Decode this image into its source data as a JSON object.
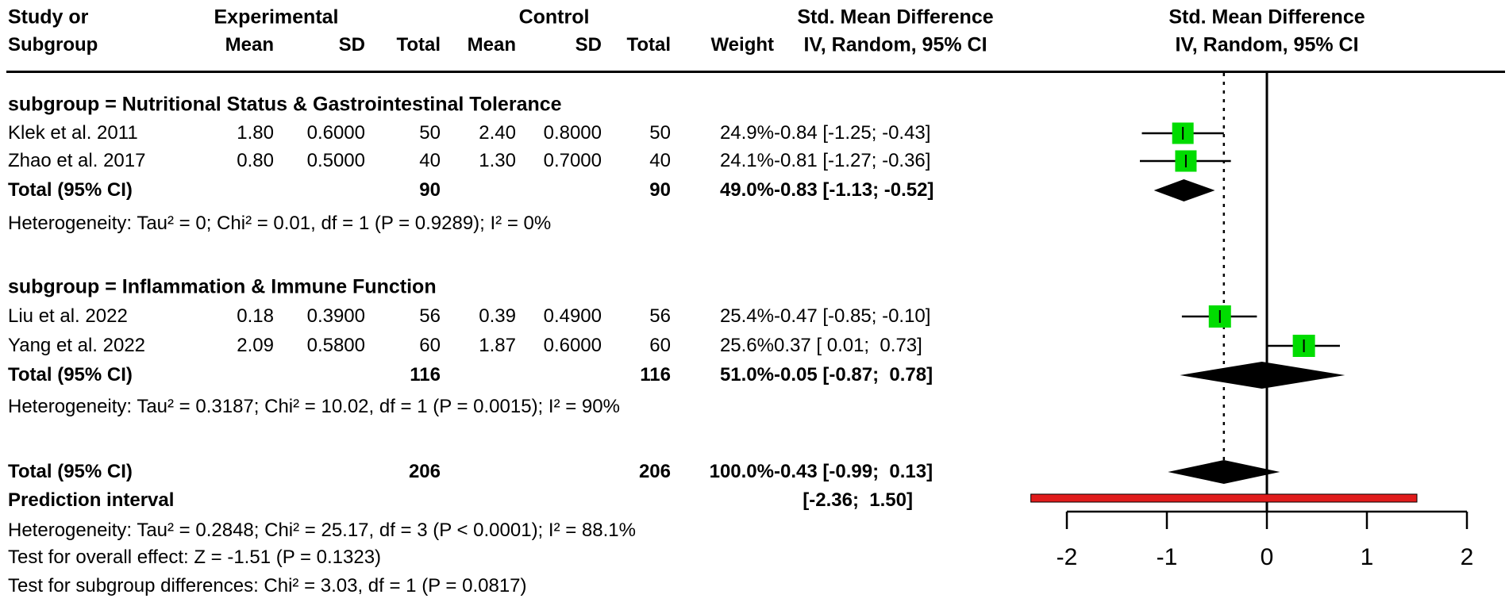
{
  "table": {
    "header": {
      "study_line1": "Study or",
      "study_line2": "Subgroup",
      "experimental": "Experimental",
      "control": "Control",
      "mean": "Mean",
      "sd": "SD",
      "total": "Total",
      "weight": "Weight",
      "smd_line1": "Std. Mean Difference",
      "smd_line2": "IV, Random, 95% CI"
    },
    "s1": {
      "heading": "subgroup = Nutritional Status & Gastrointestinal Tolerance",
      "rows": [
        {
          "study": "Klek et al. 2011",
          "mean_e": "1.80",
          "sd_e": "0.6000",
          "n_e": "50",
          "mean_c": "2.40",
          "sd_c": "0.8000",
          "n_c": "50",
          "weight": "24.9%",
          "smd": "-0.84 [-1.25; -0.43]"
        },
        {
          "study": "Zhao et al. 2017",
          "mean_e": "0.80",
          "sd_e": "0.5000",
          "n_e": "40",
          "mean_c": "1.30",
          "sd_c": "0.7000",
          "n_c": "40",
          "weight": "24.1%",
          "smd": "-0.81 [-1.27; -0.36]"
        }
      ],
      "total": {
        "label": "Total (95% CI)",
        "n_e": "90",
        "n_c": "90",
        "weight": "49.0%",
        "smd": "-0.83 [-1.13; -0.52]"
      },
      "heterogeneity": "Heterogeneity: Tau² = 0; Chi² = 0.01, df = 1 (P = 0.9289); I² = 0%"
    },
    "s2": {
      "heading": "subgroup = Inflammation & Immune Function",
      "rows": [
        {
          "study": "Liu et al. 2022",
          "mean_e": "0.18",
          "sd_e": "0.3900",
          "n_e": "56",
          "mean_c": "0.39",
          "sd_c": "0.4900",
          "n_c": "56",
          "weight": "25.4%",
          "smd": "-0.47 [-0.85; -0.10]"
        },
        {
          "study": "Yang et al. 2022",
          "mean_e": "2.09",
          "sd_e": "0.5800",
          "n_e": "60",
          "mean_c": "1.87",
          "sd_c": "0.6000",
          "n_c": "60",
          "weight": "25.6%",
          "smd": "0.37 [ 0.01;  0.73]"
        }
      ],
      "total": {
        "label": "Total (95% CI)",
        "n_e": "116",
        "n_c": "116",
        "weight": "51.0%",
        "smd": "-0.05 [-0.87;  0.78]"
      },
      "heterogeneity": "Heterogeneity: Tau² = 0.3187; Chi² = 10.02, df = 1 (P = 0.0015); I² = 90%"
    },
    "overall_total": {
      "label": "Total (95% CI)",
      "n_e": "206",
      "n_c": "206",
      "weight": "100.0%",
      "smd": "-0.43 [-0.99;  0.13]"
    },
    "prediction": {
      "label": "Prediction interval",
      "ci": "[-2.36;  1.50]"
    },
    "heterogeneity_overall": "Heterogeneity: Tau² = 0.2848; Chi² = 25.17, df = 3 (P < 0.0001); I² = 88.1%",
    "test_overall": "Test for overall effect: Z = -1.51 (P = 0.1323)",
    "test_subgroup": "Test for subgroup differences: Chi² = 3.03, df = 1 (P = 0.0817)"
  },
  "chart_data": {
    "type": "forest",
    "effect_measure": "Std. Mean Difference",
    "model": "IV, Random, 95% CI",
    "x_axis": {
      "min": -2,
      "max": 2,
      "ticks": [
        -2,
        -1,
        0,
        1,
        2
      ]
    },
    "zero_line": 0,
    "overall_effect_dashed_line": -0.43,
    "colors": {
      "square": "#00DC00",
      "diamond": "#000000",
      "prediction_bar": "#E01B1B",
      "line": "#000000"
    },
    "subgroups": [
      {
        "name": "Nutritional Status & Gastrointestinal Tolerance",
        "studies": [
          {
            "study": "Klek et al. 2011",
            "exp_mean": 1.8,
            "exp_sd": 0.6,
            "exp_total": 50,
            "ctrl_mean": 2.4,
            "ctrl_sd": 0.8,
            "ctrl_total": 50,
            "weight_pct": 24.9,
            "smd": -0.84,
            "ci_low": -1.25,
            "ci_high": -0.43
          },
          {
            "study": "Zhao et al. 2017",
            "exp_mean": 0.8,
            "exp_sd": 0.5,
            "exp_total": 40,
            "ctrl_mean": 1.3,
            "ctrl_sd": 0.7,
            "ctrl_total": 40,
            "weight_pct": 24.1,
            "smd": -0.81,
            "ci_low": -1.27,
            "ci_high": -0.36
          }
        ],
        "total": {
          "exp_total": 90,
          "ctrl_total": 90,
          "weight_pct": 49.0,
          "smd": -0.83,
          "ci_low": -1.13,
          "ci_high": -0.52
        },
        "heterogeneity": {
          "tau2": 0,
          "chi2": 0.01,
          "df": 1,
          "p": 0.9289,
          "i2_pct": 0
        }
      },
      {
        "name": "Inflammation & Immune Function",
        "studies": [
          {
            "study": "Liu et al. 2022",
            "exp_mean": 0.18,
            "exp_sd": 0.39,
            "exp_total": 56,
            "ctrl_mean": 0.39,
            "ctrl_sd": 0.49,
            "ctrl_total": 56,
            "weight_pct": 25.4,
            "smd": -0.47,
            "ci_low": -0.85,
            "ci_high": -0.1
          },
          {
            "study": "Yang et al. 2022",
            "exp_mean": 2.09,
            "exp_sd": 0.58,
            "exp_total": 60,
            "ctrl_mean": 1.87,
            "ctrl_sd": 0.6,
            "ctrl_total": 60,
            "weight_pct": 25.6,
            "smd": 0.37,
            "ci_low": 0.01,
            "ci_high": 0.73
          }
        ],
        "total": {
          "exp_total": 116,
          "ctrl_total": 116,
          "weight_pct": 51.0,
          "smd": -0.05,
          "ci_low": -0.87,
          "ci_high": 0.78
        },
        "heterogeneity": {
          "tau2": 0.3187,
          "chi2": 10.02,
          "df": 1,
          "p": 0.0015,
          "i2_pct": 90
        }
      }
    ],
    "overall": {
      "exp_total": 206,
      "ctrl_total": 206,
      "weight_pct": 100.0,
      "smd": -0.43,
      "ci_low": -0.99,
      "ci_high": 0.13
    },
    "prediction_interval": {
      "low": -2.36,
      "high": 1.5
    },
    "heterogeneity_overall": {
      "tau2": 0.2848,
      "chi2": 25.17,
      "df": 3,
      "p": "< 0.0001",
      "i2_pct": 88.1
    },
    "test_overall_effect": {
      "z": -1.51,
      "p": 0.1323
    },
    "test_subgroup_differences": {
      "chi2": 3.03,
      "df": 1,
      "p": 0.0817
    }
  }
}
